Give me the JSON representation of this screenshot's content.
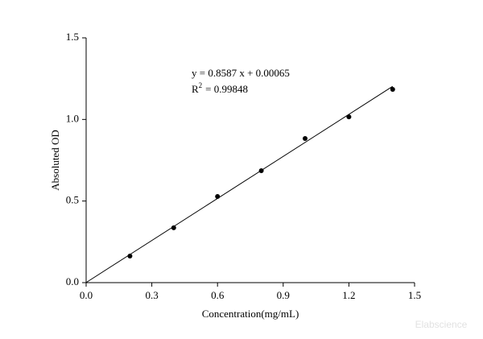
{
  "chart_data": {
    "type": "scatter",
    "xlabel": "Concentration(mg/mL)",
    "ylabel": "Absoluted OD",
    "series": [
      {
        "type": "scatter",
        "color": "#000000",
        "x": [
          0.2,
          0.4,
          0.6,
          0.8,
          1.0,
          1.2,
          1.4
        ],
        "values": [
          0.163,
          0.336,
          0.528,
          0.686,
          0.883,
          1.016,
          1.184
        ]
      },
      {
        "type": "line",
        "color": "#000000",
        "x": [
          0,
          1.4
        ],
        "values": [
          0.00065,
          1.2028
        ]
      }
    ],
    "xlim": [
      0,
      1.5
    ],
    "ylim": [
      0,
      1.5
    ],
    "xticks": [
      {
        "value": 0,
        "label": "0.0"
      },
      {
        "value": 0.3,
        "label": "0.3"
      },
      {
        "value": 0.6,
        "label": "0.6"
      },
      {
        "value": 0.9,
        "label": "0.9"
      },
      {
        "value": 1.2,
        "label": "1.2"
      },
      {
        "value": 1.5,
        "label": "1.5"
      }
    ],
    "yticks": [
      {
        "value": 0,
        "label": "0.0"
      },
      {
        "value": 0.5,
        "label": "0.5"
      },
      {
        "value": 1.0,
        "label": "1.0"
      },
      {
        "value": 1.5,
        "label": "1.5"
      }
    ],
    "annotations": {
      "equation": "y = 0.8587 x + 0.00065",
      "r_symbol": "R",
      "r_exponent": "2",
      "r_value": "= 0.99848"
    },
    "watermark": "Elabscience",
    "grid": false
  }
}
